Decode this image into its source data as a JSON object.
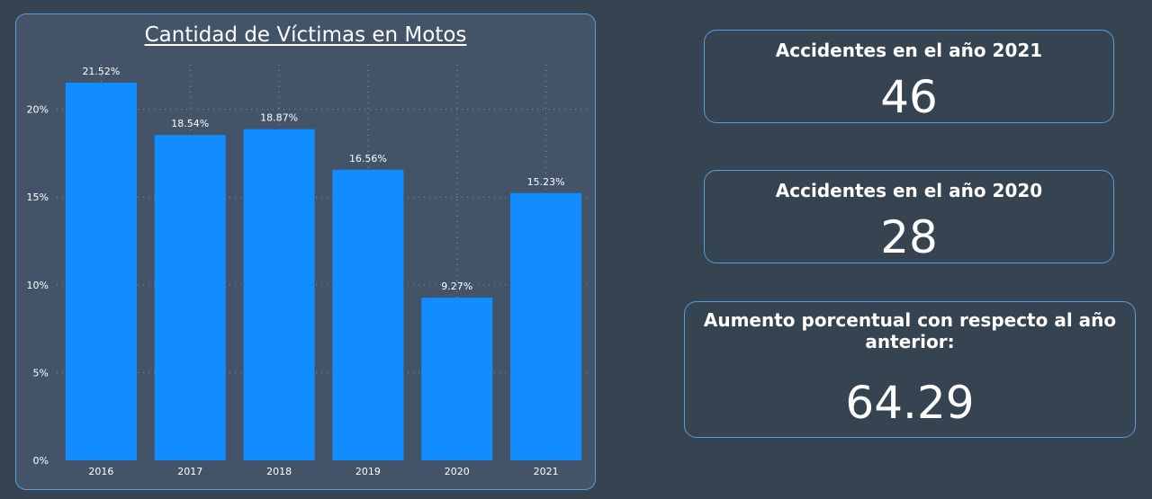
{
  "chart_data": {
    "type": "bar",
    "title": "Cantidad de Víctimas en Motos",
    "categories": [
      "2016",
      "2017",
      "2018",
      "2019",
      "2020",
      "2021"
    ],
    "values": [
      21.52,
      18.54,
      18.87,
      16.56,
      9.27,
      15.23
    ],
    "data_labels": [
      "21.52%",
      "18.54%",
      "18.87%",
      "16.56%",
      "9.27%",
      "15.23%"
    ],
    "y_ticks": [
      0,
      5,
      10,
      15,
      20
    ],
    "y_tick_labels": [
      "0%",
      "5%",
      "10%",
      "15%",
      "20%"
    ],
    "ylim": [
      0,
      21.52
    ],
    "xlabel": "",
    "ylabel": "",
    "grid": true,
    "bar_color": "#118dff"
  },
  "cards": {
    "accidents_2021": {
      "label": "Accidentes en el año 2021",
      "value": "46"
    },
    "accidents_2020": {
      "label": "Accidentes en el año 2020",
      "value": "28"
    },
    "increase": {
      "label": "Aumento porcentual con respecto al año anterior:",
      "value": "64.29"
    }
  }
}
